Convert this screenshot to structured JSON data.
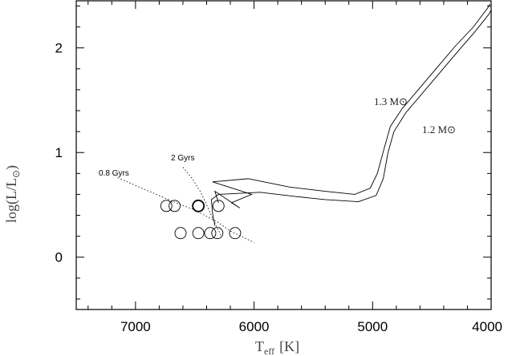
{
  "chart_data": {
    "type": "scatter",
    "title": "",
    "x_axis": {
      "label_main": "T",
      "label_sub": "eff",
      "label_unit": "[K]",
      "range": [
        7500,
        4000
      ],
      "ticks": [
        7000,
        6000,
        5000,
        4000
      ],
      "minor_step": 200
    },
    "y_axis": {
      "label_main": "log(L/L",
      "label_sub": "⊙",
      "label_close": ")",
      "range": [
        -0.5,
        2.45
      ],
      "ticks": [
        0,
        1,
        2
      ],
      "minor_step": 0.2
    },
    "grid": false,
    "tracks": [
      {
        "name": "1.3 M⊙",
        "label": "1.3 M⊙",
        "x": [
          6300,
          6330,
          6120,
          6190,
          6020,
          6350,
          6050,
          5700,
          5400,
          5150,
          5020,
          4960,
          4900,
          4850,
          4750,
          4600,
          4450,
          4300,
          4150,
          4030,
          4010
        ],
        "y": [
          0.52,
          0.63,
          0.47,
          0.52,
          0.6,
          0.72,
          0.75,
          0.67,
          0.63,
          0.6,
          0.66,
          0.8,
          1.05,
          1.25,
          1.42,
          1.62,
          1.82,
          2.02,
          2.2,
          2.38,
          2.42
        ]
      },
      {
        "name": "1.2 M⊙",
        "label": "1.2 M⊙",
        "x": [
          6330,
          6350,
          6360,
          6300,
          5950,
          5650,
          5400,
          5120,
          4970,
          4910,
          4870,
          4820,
          4720,
          4570,
          4420,
          4270,
          4140,
          4020,
          4000
        ],
        "y": [
          0.3,
          0.42,
          0.55,
          0.6,
          0.62,
          0.58,
          0.55,
          0.53,
          0.59,
          0.75,
          1.0,
          1.2,
          1.38,
          1.58,
          1.78,
          1.98,
          2.15,
          2.32,
          2.36
        ]
      }
    ],
    "isochrones": [
      {
        "name": "0.8 Gyrs",
        "label": "0.8 Gyrs",
        "x": [
          7150,
          6950,
          6700,
          6500,
          6300,
          6200,
          6000
        ],
        "y": [
          0.76,
          0.66,
          0.54,
          0.45,
          0.33,
          0.25,
          0.14
        ]
      },
      {
        "name": "2 Gyrs",
        "label": "2 Gyrs",
        "x": [
          6600,
          6520,
          6450,
          6400,
          6360,
          6320,
          6280
        ],
        "y": [
          0.86,
          0.75,
          0.62,
          0.5,
          0.4,
          0.3,
          0.21
        ]
      }
    ],
    "stars": [
      {
        "teff": 6740,
        "logL": 0.49,
        "bold": false
      },
      {
        "teff": 6670,
        "logL": 0.49,
        "bold": false
      },
      {
        "teff": 6470,
        "logL": 0.49,
        "bold": true
      },
      {
        "teff": 6300,
        "logL": 0.49,
        "bold": false
      },
      {
        "teff": 6620,
        "logL": 0.23,
        "bold": false
      },
      {
        "teff": 6470,
        "logL": 0.23,
        "bold": false
      },
      {
        "teff": 6370,
        "logL": 0.23,
        "bold": false
      },
      {
        "teff": 6310,
        "logL": 0.23,
        "bold": false
      },
      {
        "teff": 6160,
        "logL": 0.23,
        "bold": false
      }
    ]
  }
}
